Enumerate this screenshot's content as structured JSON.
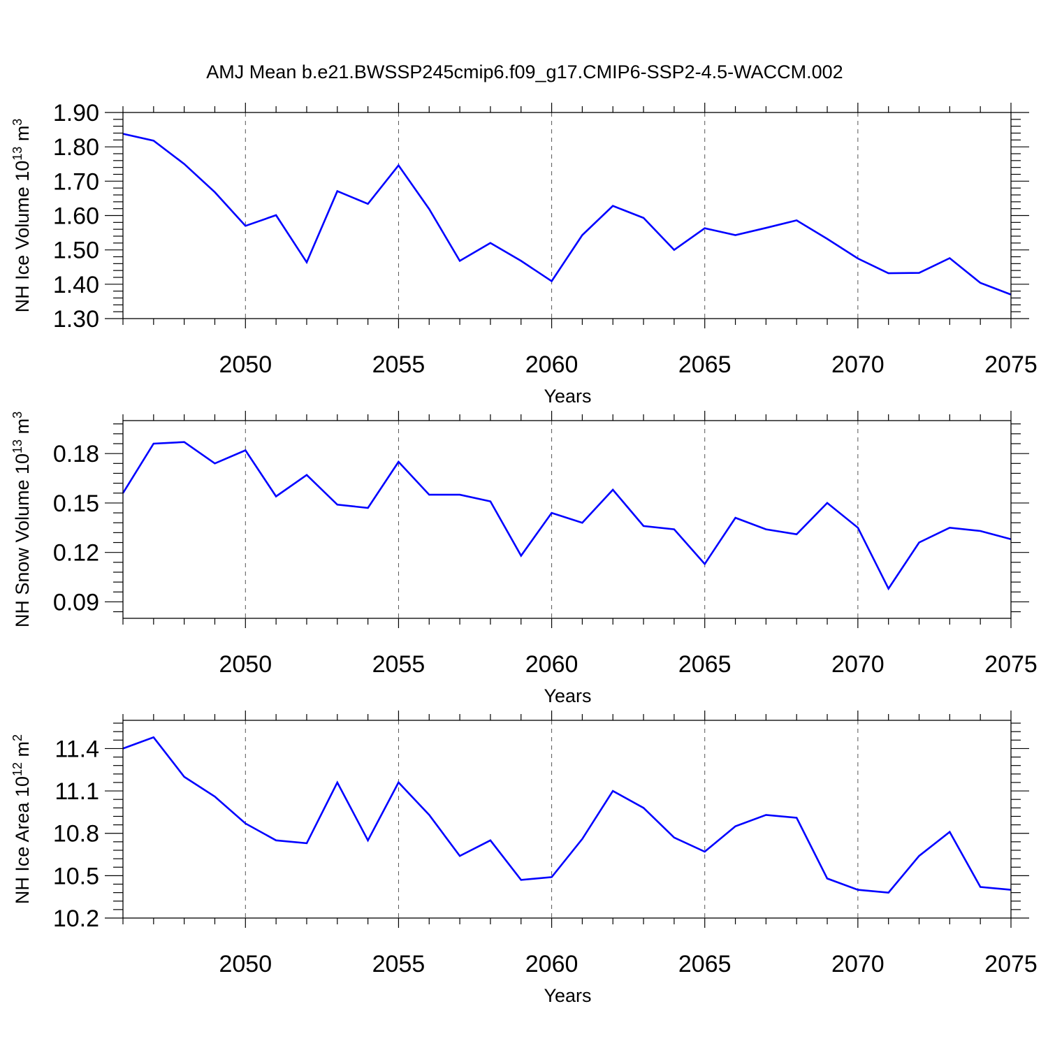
{
  "title": "AMJ Mean b.e21.BWSSP245cmip6.f09_g17.CMIP6-SSP2-4.5-WACCM.002",
  "colors": {
    "line": "#0000ff",
    "axis": "#000000",
    "grid": "#555555"
  },
  "chart_data": [
    {
      "type": "line",
      "ylabel": {
        "base": "NH Ice Volume 10",
        "exp": "13",
        "unit": " m",
        "unit_exp": "3"
      },
      "xlabel": "Years",
      "xlim": [
        2046,
        2075
      ],
      "ylim": [
        1.3,
        1.9
      ],
      "yticks": [
        1.3,
        1.4,
        1.5,
        1.6,
        1.7,
        1.8,
        1.9
      ],
      "ytick_labels": [
        "1.30",
        "1.40",
        "1.50",
        "1.60",
        "1.70",
        "1.80",
        "1.90"
      ],
      "xticks": [
        2050,
        2055,
        2060,
        2065,
        2070,
        2075
      ],
      "xtick_labels": [
        "2050",
        "2055",
        "2060",
        "2065",
        "2070",
        "2075"
      ],
      "grid": "vertical-dashed",
      "x": [
        2046,
        2047,
        2048,
        2049,
        2050,
        2051,
        2052,
        2053,
        2054,
        2055,
        2056,
        2057,
        2058,
        2059,
        2060,
        2061,
        2062,
        2063,
        2064,
        2065,
        2066,
        2067,
        2068,
        2069,
        2070,
        2071,
        2072,
        2073,
        2074,
        2075
      ],
      "values": [
        1.838,
        1.818,
        1.75,
        1.668,
        1.57,
        1.601,
        1.464,
        1.671,
        1.634,
        1.746,
        1.619,
        1.468,
        1.52,
        1.468,
        1.409,
        1.543,
        1.628,
        1.593,
        1.5,
        1.563,
        1.543,
        1.564,
        1.586,
        1.532,
        1.475,
        1.432,
        1.433,
        1.476,
        1.404,
        1.37
      ]
    },
    {
      "type": "line",
      "ylabel": {
        "base": "NH Snow Volume 10",
        "exp": "13",
        "unit": " m",
        "unit_exp": "3"
      },
      "xlabel": "Years",
      "xlim": [
        2046,
        2075
      ],
      "ylim": [
        0.08,
        0.2
      ],
      "yticks": [
        0.09,
        0.12,
        0.15,
        0.18
      ],
      "ytick_labels": [
        "0.09",
        "0.12",
        "0.15",
        "0.18"
      ],
      "xticks": [
        2050,
        2055,
        2060,
        2065,
        2070,
        2075
      ],
      "xtick_labels": [
        "2050",
        "2055",
        "2060",
        "2065",
        "2070",
        "2075"
      ],
      "grid": "vertical-dashed",
      "x": [
        2046,
        2047,
        2048,
        2049,
        2050,
        2051,
        2052,
        2053,
        2054,
        2055,
        2056,
        2057,
        2058,
        2059,
        2060,
        2061,
        2062,
        2063,
        2064,
        2065,
        2066,
        2067,
        2068,
        2069,
        2070,
        2071,
        2072,
        2073,
        2074,
        2075
      ],
      "values": [
        0.156,
        0.186,
        0.187,
        0.174,
        0.182,
        0.154,
        0.167,
        0.149,
        0.147,
        0.175,
        0.155,
        0.155,
        0.151,
        0.118,
        0.144,
        0.138,
        0.158,
        0.136,
        0.134,
        0.113,
        0.141,
        0.134,
        0.131,
        0.15,
        0.135,
        0.098,
        0.126,
        0.135,
        0.133,
        0.128
      ]
    },
    {
      "type": "line",
      "ylabel": {
        "base": "NH Ice Area 10",
        "exp": "12",
        "unit": " m",
        "unit_exp": "2"
      },
      "xlabel": "Years",
      "xlim": [
        2046,
        2075
      ],
      "ylim": [
        10.2,
        11.6
      ],
      "yticks": [
        10.2,
        10.5,
        10.8,
        11.1,
        11.4
      ],
      "ytick_labels": [
        "10.2",
        "10.5",
        "10.8",
        "11.1",
        "11.4"
      ],
      "xticks": [
        2050,
        2055,
        2060,
        2065,
        2070,
        2075
      ],
      "xtick_labels": [
        "2050",
        "2055",
        "2060",
        "2065",
        "2070",
        "2075"
      ],
      "grid": "vertical-dashed",
      "x": [
        2046,
        2047,
        2048,
        2049,
        2050,
        2051,
        2052,
        2053,
        2054,
        2055,
        2056,
        2057,
        2058,
        2059,
        2060,
        2061,
        2062,
        2063,
        2064,
        2065,
        2066,
        2067,
        2068,
        2069,
        2070,
        2071,
        2072,
        2073,
        2074,
        2075
      ],
      "values": [
        11.4,
        11.48,
        11.2,
        11.06,
        10.87,
        10.75,
        10.73,
        11.16,
        10.75,
        11.16,
        10.93,
        10.64,
        10.75,
        10.47,
        10.49,
        10.76,
        11.1,
        10.98,
        10.77,
        10.67,
        10.85,
        10.93,
        10.91,
        10.48,
        10.4,
        10.38,
        10.64,
        10.81,
        10.42,
        10.4
      ]
    }
  ]
}
